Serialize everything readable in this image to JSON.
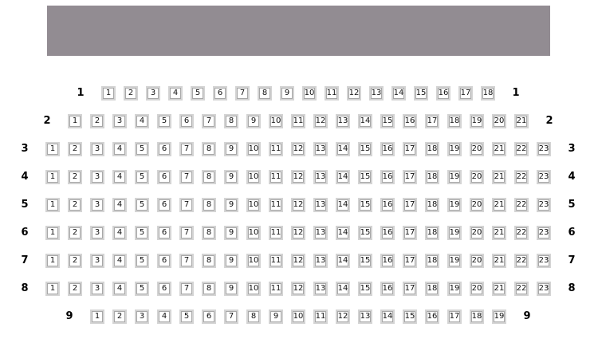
{
  "screen": {
    "color": "#928c92"
  },
  "seat_colors": {
    "border": "#d4d4d4",
    "inner_border": "#a8a8a8",
    "fill": "#ffffff"
  },
  "rows": [
    {
      "label": "1",
      "seats": 18
    },
    {
      "label": "2",
      "seats": 21
    },
    {
      "label": "3",
      "seats": 23
    },
    {
      "label": "4",
      "seats": 23
    },
    {
      "label": "5",
      "seats": 23
    },
    {
      "label": "6",
      "seats": 23
    },
    {
      "label": "7",
      "seats": 23
    },
    {
      "label": "8",
      "seats": 23
    },
    {
      "label": "9",
      "seats": 19
    }
  ]
}
